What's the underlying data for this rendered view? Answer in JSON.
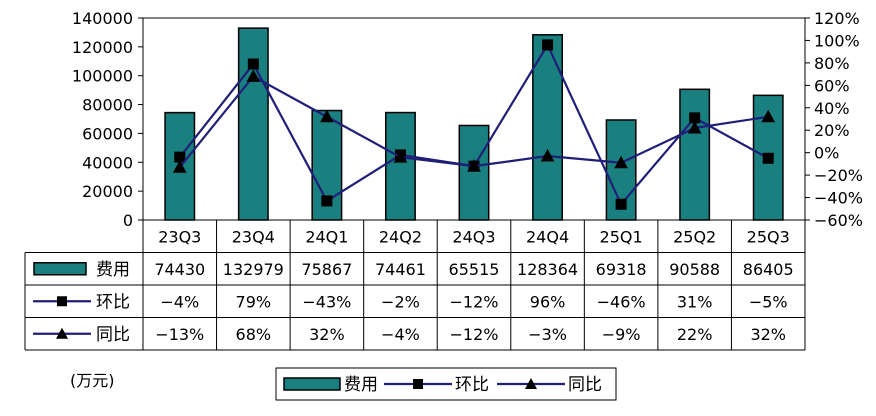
{
  "chart_data": {
    "type": "bar",
    "categories": [
      "23Q3",
      "23Q4",
      "24Q1",
      "24Q2",
      "24Q3",
      "24Q4",
      "25Q1",
      "25Q2",
      "25Q3"
    ],
    "series": [
      {
        "name": "费用",
        "type": "bar",
        "axis": "left",
        "color": "#1a7f7f",
        "values": [
          74430,
          132979,
          75867,
          74461,
          65515,
          128364,
          69318,
          90588,
          86405
        ],
        "labels": [
          "74430",
          "132979",
          "75867",
          "74461",
          "65515",
          "128364",
          "69318",
          "90588",
          "86405"
        ]
      },
      {
        "name": "环比",
        "type": "line",
        "axis": "right",
        "marker": "square",
        "color": "#1f1f7a",
        "values": [
          -4,
          79,
          -43,
          -2,
          -12,
          96,
          -46,
          31,
          -5
        ],
        "labels": [
          "−4%",
          "79%",
          "−43%",
          "−2%",
          "−12%",
          "96%",
          "−46%",
          "31%",
          "−5%"
        ]
      },
      {
        "name": "同比",
        "type": "line",
        "axis": "right",
        "marker": "triangle",
        "color": "#1f1f7a",
        "values": [
          -13,
          68,
          32,
          -4,
          -12,
          -3,
          -9,
          22,
          32
        ],
        "labels": [
          "−13%",
          "68%",
          "32%",
          "−4%",
          "−12%",
          "−3%",
          "−9%",
          "22%",
          "32%"
        ]
      }
    ],
    "y_left": {
      "ylim": [
        0,
        140000
      ],
      "ticks": [
        "0",
        "20000",
        "40000",
        "60000",
        "80000",
        "100000",
        "120000",
        "140000"
      ]
    },
    "y_right": {
      "ylim": [
        -60,
        120
      ],
      "ticks": [
        "−60%",
        "−40%",
        "−20%",
        "0%",
        "20%",
        "40%",
        "60%",
        "80%",
        "100%",
        "120%"
      ]
    },
    "unit_label": "(万元)",
    "grid": false,
    "legend_position": "bottom"
  }
}
